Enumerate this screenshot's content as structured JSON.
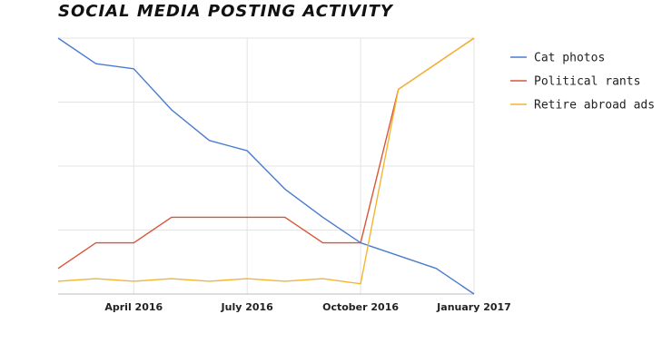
{
  "chart_data": {
    "type": "line",
    "title": "SOCIAL MEDIA POSTING ACTIVITY",
    "xlabel": "",
    "ylabel": "",
    "x_index": [
      0,
      1,
      2,
      3,
      4,
      5,
      6,
      7,
      8,
      9,
      10,
      11
    ],
    "x_ticks": [
      {
        "index": 2,
        "label": "April 2016"
      },
      {
        "index": 5,
        "label": "July 2016"
      },
      {
        "index": 8,
        "label": "October 2016"
      },
      {
        "index": 11,
        "label": "January 2017"
      }
    ],
    "ylim": [
      0,
      100
    ],
    "y_gridlines": [
      0,
      25,
      50,
      75,
      100
    ],
    "grid": true,
    "legend_position": "right",
    "series": [
      {
        "name": "Cat photos",
        "color": "#4a7bd0",
        "values": [
          100,
          90,
          88,
          72,
          60,
          56,
          41,
          30,
          20,
          15,
          10,
          0
        ]
      },
      {
        "name": "Political rants",
        "color": "#d9553a",
        "values": [
          10,
          20,
          20,
          30,
          30,
          30,
          30,
          20,
          20,
          80,
          90,
          100
        ]
      },
      {
        "name": "Retire abroad ads",
        "color": "#f2b630",
        "values": [
          5,
          6,
          5,
          6,
          5,
          6,
          5,
          6,
          4,
          80,
          90,
          100
        ]
      }
    ]
  }
}
